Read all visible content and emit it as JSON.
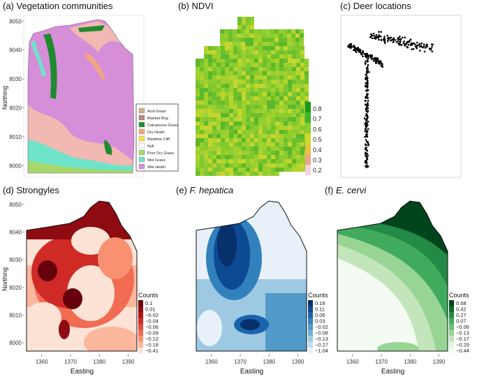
{
  "panels": [
    {
      "id": "a",
      "prefix": "(a) ",
      "title": "Vegetation communities",
      "italic": false
    },
    {
      "id": "b",
      "prefix": "(b) ",
      "title": "NDVI",
      "italic": false
    },
    {
      "id": "c",
      "prefix": "(c) ",
      "title": "Deer locations",
      "italic": false
    },
    {
      "id": "d",
      "prefix": "(d) ",
      "title": "Strongyles",
      "italic": false
    },
    {
      "id": "e",
      "prefix": "(e) ",
      "title": "F. hepatica",
      "italic": true
    },
    {
      "id": "f",
      "prefix": "(f) ",
      "title": "E. cervi",
      "italic": true
    }
  ],
  "axes": {
    "northing_label": "Northing",
    "easting_label": "Easting",
    "northing_ticks": [
      8000,
      8010,
      8020,
      8030,
      8040,
      8050
    ],
    "easting_ticks": [
      1360,
      1370,
      1380,
      1390
    ],
    "northing_range": [
      7996,
      8052
    ],
    "easting_range": [
      1354,
      1394
    ]
  },
  "vegetation_legend": [
    {
      "label": "Acid Grass",
      "color": "#c8b08a"
    },
    {
      "label": "Blanket Bog",
      "color": "#b5857f"
    },
    {
      "label": "Calcareous Grass",
      "color": "#1f8a2e"
    },
    {
      "label": "Dry Heath",
      "color": "#f0a683"
    },
    {
      "label": "Maritime Cliff",
      "color": "#f2e24a"
    },
    {
      "label": "Null",
      "color": "#ffffff"
    },
    {
      "label": "Poor Dry Grass",
      "color": "#a6d96a"
    },
    {
      "label": "Wet Grass",
      "color": "#6fe3c9"
    },
    {
      "label": "Wet Heath",
      "color": "#d68ed9"
    }
  ],
  "ndvi_legend": {
    "ticks": [
      "0.8",
      "0.7",
      "0.6",
      "0.5",
      "0.4",
      "0.3",
      "0.2"
    ],
    "colors": [
      "#1a9a1a",
      "#3fb52a",
      "#8ccc2e",
      "#d0d72b",
      "#e9c33d",
      "#eaa58a",
      "#f2d2dc"
    ]
  },
  "strongyles_legend": {
    "title": "Counts",
    "labels": [
      "0.1",
      "0.01",
      "−0.02",
      "−0.04",
      "−0.06",
      "−0.09",
      "−0.12",
      "−0.18",
      "−0.41"
    ],
    "colors": [
      "#67000d",
      "#8e0b12",
      "#b3131b",
      "#cf2a26",
      "#e4493a",
      "#f26b53",
      "#f99072",
      "#fcb79d",
      "#fde3d6"
    ]
  },
  "fhepatica_legend": {
    "title": "Counts",
    "labels": [
      "0.18",
      "0.11",
      "0.06",
      "0.03",
      "−0.02",
      "−0.08",
      "−0.13",
      "−0.27",
      "−1.04"
    ],
    "colors": [
      "#08306b",
      "#0d4a94",
      "#1b64ad",
      "#3181bd",
      "#5199c8",
      "#73b0d6",
      "#9ec9e2",
      "#c6dcef",
      "#e8f1fa"
    ]
  },
  "ecervi_legend": {
    "title": "Counts",
    "labels": [
      "0.58",
      "0.42",
      "0.27",
      "0.07",
      "−0.06",
      "−0.13",
      "−0.17",
      "−0.29",
      "−0.44"
    ],
    "colors": [
      "#00441b",
      "#0b6a2c",
      "#238b45",
      "#41ab5d",
      "#6cc17a",
      "#98d594",
      "#c2e5bc",
      "#e0f3db",
      "#f4fbf2"
    ]
  }
}
